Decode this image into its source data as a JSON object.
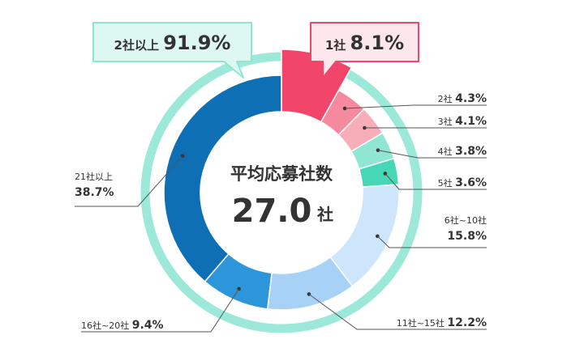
{
  "chart_data": {
    "type": "pie",
    "center": {
      "title": "平均応募社数",
      "value": "27.0",
      "unit": "社"
    },
    "slices": [
      {
        "label": "1社",
        "value": 8.1,
        "display": "8.1%",
        "color": "#f2456a"
      },
      {
        "label": "2社",
        "value": 4.3,
        "display": "4.3%",
        "color": "#f5899d"
      },
      {
        "label": "3社",
        "value": 4.1,
        "display": "4.1%",
        "color": "#f7aeb9"
      },
      {
        "label": "4社",
        "value": 3.8,
        "display": "3.8%",
        "color": "#8fe6d2"
      },
      {
        "label": "5社",
        "value": 3.6,
        "display": "3.6%",
        "color": "#46d8b6"
      },
      {
        "label": "6社~10社",
        "value": 15.8,
        "display": "15.8%",
        "color": "#cde6fb"
      },
      {
        "label": "11社~15社",
        "value": 12.2,
        "display": "12.2%",
        "color": "#a7d2f6"
      },
      {
        "label": "16社~20社",
        "value": 9.4,
        "display": "9.4%",
        "color": "#2d95da"
      },
      {
        "label": "21社以上",
        "value": 38.7,
        "display": "38.7%",
        "color": "#0f6fb5"
      }
    ],
    "callouts": [
      {
        "label": "1社",
        "display": "8.1%",
        "bg": "#fde7ec",
        "border": "#f2456a"
      },
      {
        "label": "2社以上",
        "display": "91.9%",
        "bg": "#ddf8f1",
        "border": "#8fe6d2"
      }
    ],
    "ring_color": "#9de9d9"
  }
}
